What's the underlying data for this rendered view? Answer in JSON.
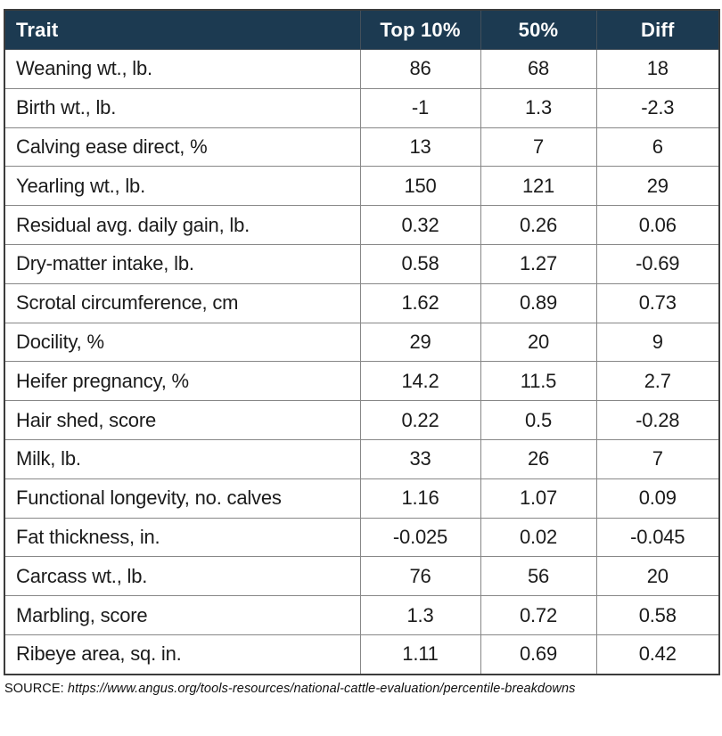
{
  "colors": {
    "header_bg": "#1c3a51",
    "header_text": "#ffffff",
    "header_divider": "#43505b",
    "grid_line": "#878787",
    "outer_border": "#3c3c3c",
    "body_text": "#1b1b1b",
    "page_bg": "#ffffff"
  },
  "chart_data": {
    "type": "table",
    "columns": [
      "Trait",
      "Top 10%",
      "50%",
      "Diff"
    ],
    "rows": [
      {
        "trait": "Weaning wt., lb.",
        "top10": "86",
        "p50": "68",
        "diff": "18"
      },
      {
        "trait": "Birth wt., lb.",
        "top10": "-1",
        "p50": "1.3",
        "diff": "-2.3"
      },
      {
        "trait": "Calving ease direct, %",
        "top10": "13",
        "p50": "7",
        "diff": "6"
      },
      {
        "trait": "Yearling wt., lb.",
        "top10": "150",
        "p50": "121",
        "diff": "29"
      },
      {
        "trait": "Residual avg. daily gain, lb.",
        "top10": "0.32",
        "p50": "0.26",
        "diff": "0.06"
      },
      {
        "trait": "Dry-matter intake, lb.",
        "top10": "0.58",
        "p50": "1.27",
        "diff": "-0.69"
      },
      {
        "trait": "Scrotal circumference, cm",
        "top10": "1.62",
        "p50": "0.89",
        "diff": "0.73"
      },
      {
        "trait": "Docility, %",
        "top10": "29",
        "p50": "20",
        "diff": "9"
      },
      {
        "trait": "Heifer pregnancy, %",
        "top10": "14.2",
        "p50": "11.5",
        "diff": "2.7"
      },
      {
        "trait": "Hair shed, score",
        "top10": "0.22",
        "p50": "0.5",
        "diff": "-0.28"
      },
      {
        "trait": "Milk, lb.",
        "top10": "33",
        "p50": "26",
        "diff": "7"
      },
      {
        "trait": "Functional longevity, no. calves",
        "top10": "1.16",
        "p50": "1.07",
        "diff": "0.09"
      },
      {
        "trait": "Fat thickness, in.",
        "top10": "-0.025",
        "p50": "0.02",
        "diff": "-0.045"
      },
      {
        "trait": "Carcass wt., lb.",
        "top10": "76",
        "p50": "56",
        "diff": "20"
      },
      {
        "trait": "Marbling, score",
        "top10": "1.3",
        "p50": "0.72",
        "diff": "0.58"
      },
      {
        "trait": "Ribeye area, sq. in.",
        "top10": "1.11",
        "p50": "0.69",
        "diff": "0.42"
      }
    ]
  },
  "source": {
    "label": "SOURCE:",
    "url": "https://www.angus.org/tools-resources/national-cattle-evaluation/percentile-breakdowns"
  }
}
